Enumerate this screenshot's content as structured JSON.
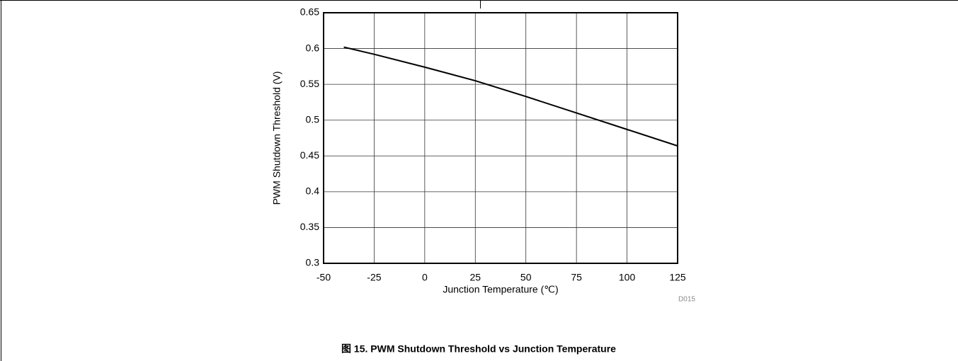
{
  "chart_data": {
    "type": "line",
    "title": "图 15. PWM Shutdown Threshold vs Junction Temperature",
    "note": "D015",
    "x_label": "Junction Temperature (℃)",
    "y_label": "PWM Shutdown Threshold (V)",
    "x": [
      -40,
      -25,
      0,
      25,
      50,
      75,
      100,
      125
    ],
    "series": [
      {
        "name": "PWM Shutdown Threshold",
        "color": "#000000",
        "values": [
          0.602,
          0.592,
          0.574,
          0.555,
          0.533,
          0.51,
          0.487,
          0.464
        ]
      }
    ],
    "xlim": [
      -50,
      125
    ],
    "xticks": [
      -50,
      -25,
      0,
      25,
      50,
      75,
      100,
      125
    ],
    "ylim": [
      0.3,
      0.65
    ],
    "yticks": [
      0.3,
      0.35,
      0.4,
      0.45,
      0.5,
      0.55,
      0.6,
      0.65
    ],
    "grid": true
  }
}
